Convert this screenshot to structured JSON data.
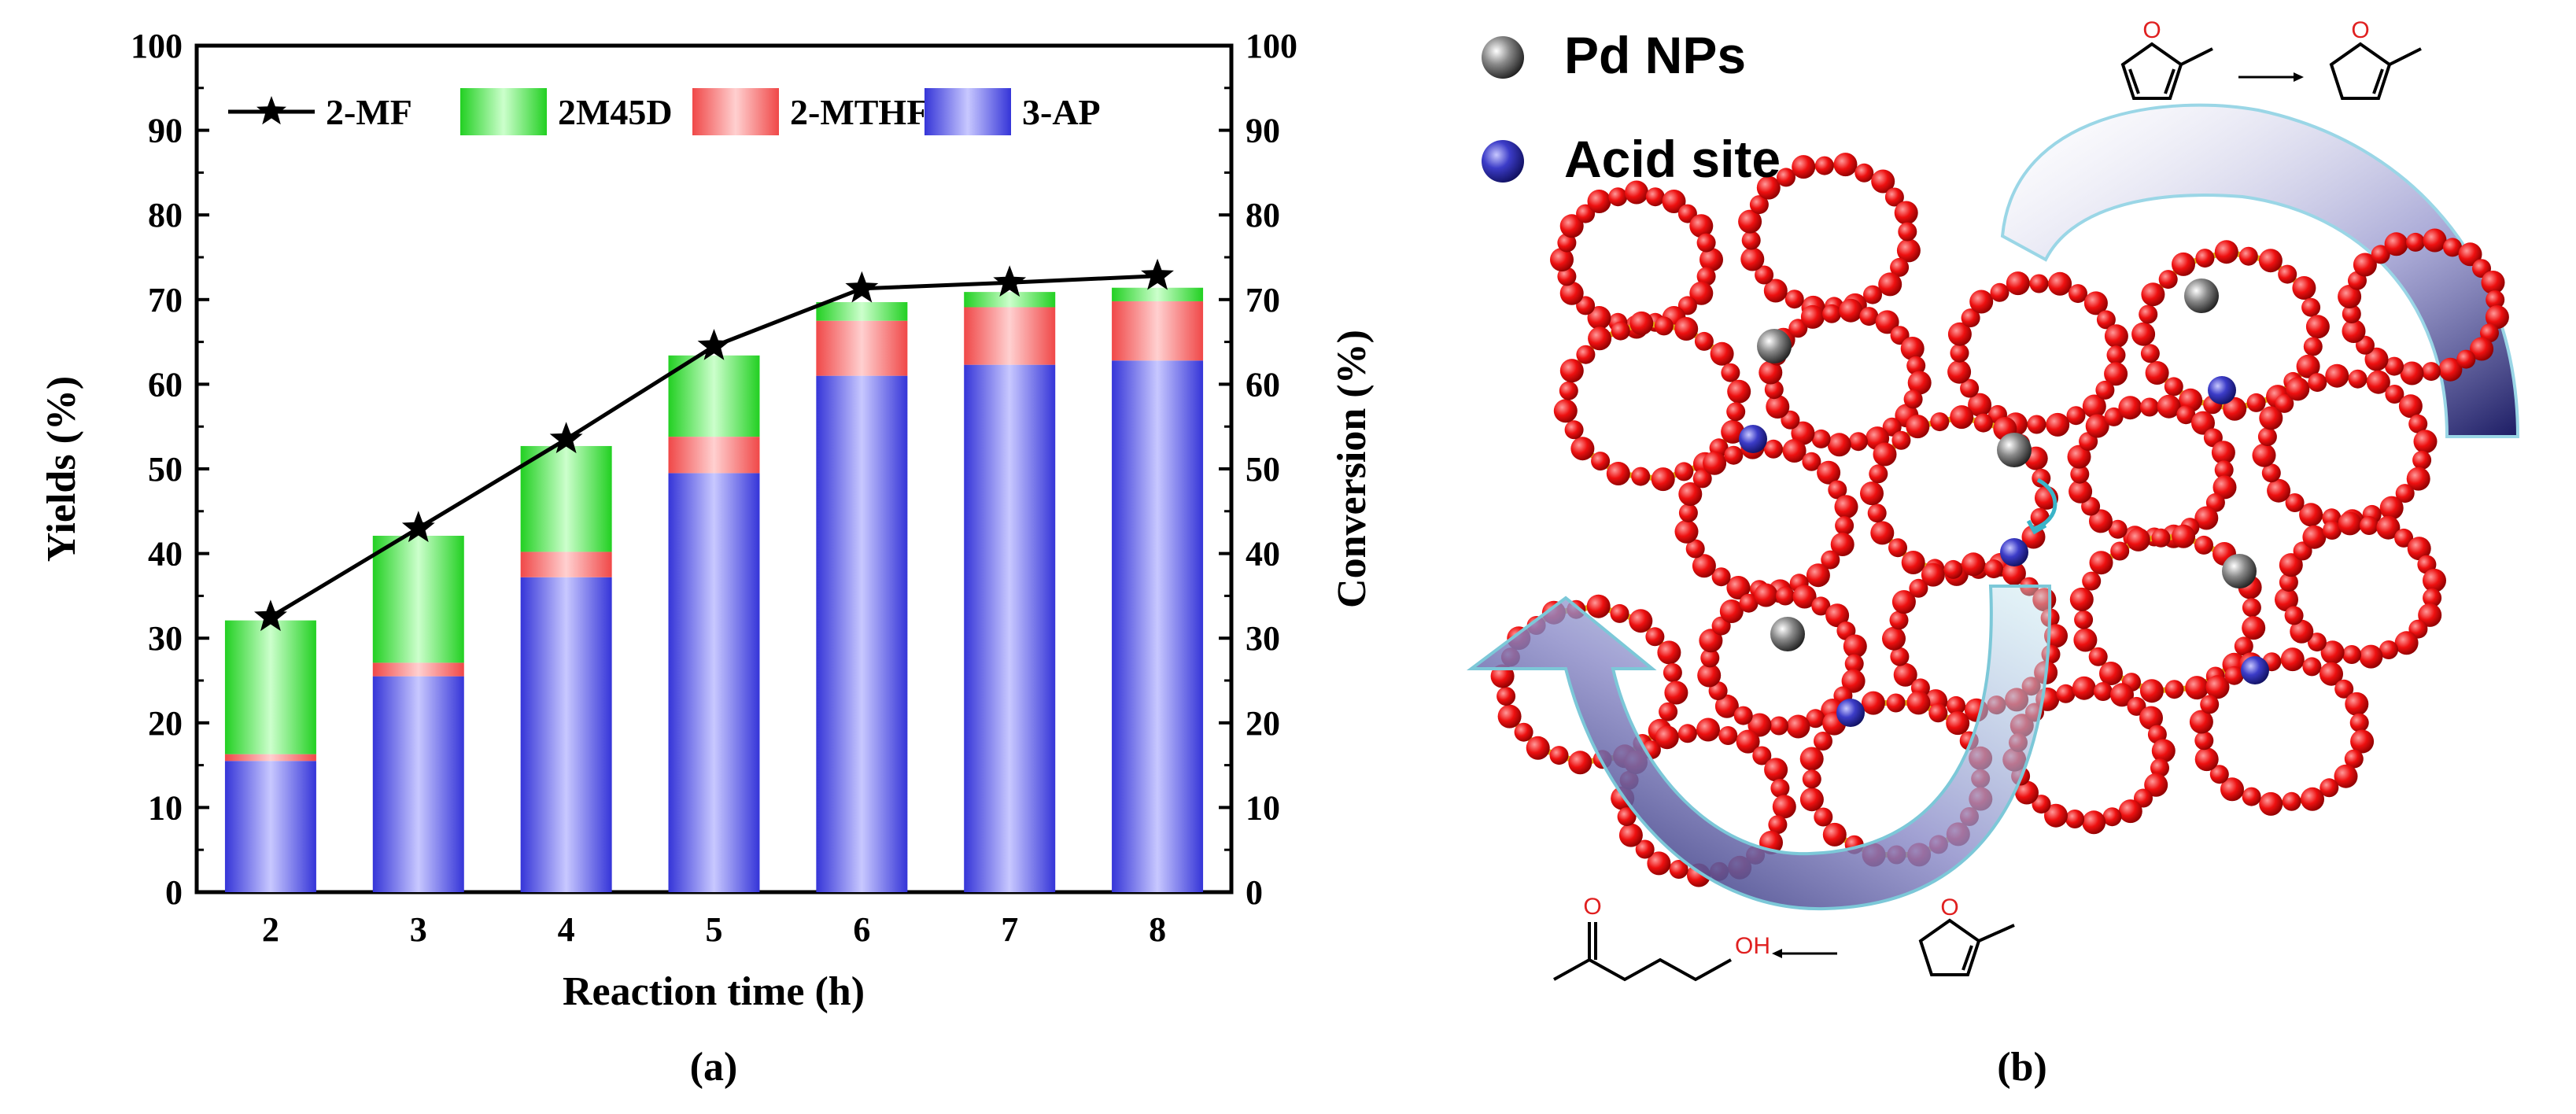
{
  "chart_data": {
    "type": "bar",
    "stacked": true,
    "title": "",
    "xlabel": "Reaction time (h)",
    "ylabel": "Yields (%)",
    "y2label": "Conversion (%)",
    "categories": [
      "2",
      "3",
      "4",
      "5",
      "6",
      "7",
      "8"
    ],
    "ylim": [
      0,
      100
    ],
    "y2lim": [
      0,
      100
    ],
    "yticks": [
      0,
      10,
      20,
      30,
      40,
      50,
      60,
      70,
      80,
      90,
      100
    ],
    "legend_position": "top-left",
    "series": [
      {
        "name": "3-AP",
        "kind": "bar",
        "color": "#4545e0",
        "values": [
          15.5,
          25.5,
          37.2,
          49.5,
          61.0,
          62.3,
          62.8
        ]
      },
      {
        "name": "2-MTHF",
        "kind": "bar",
        "color": "#ee3a3a",
        "values": [
          0.8,
          1.6,
          3.0,
          4.3,
          6.5,
          6.8,
          7.0
        ]
      },
      {
        "name": "2M45D",
        "kind": "bar",
        "color": "#29d429",
        "values": [
          15.8,
          15.0,
          12.5,
          9.6,
          2.2,
          1.8,
          1.6
        ]
      },
      {
        "name": "2-MF",
        "kind": "line",
        "axis": "right",
        "marker": "star",
        "color": "#000000",
        "values": [
          32.5,
          43.0,
          53.5,
          64.5,
          71.3,
          72.0,
          72.8
        ]
      }
    ],
    "legend_order": [
      "2-MF",
      "2M45D",
      "2-MTHF",
      "3-AP"
    ],
    "panel_label": "(a)"
  },
  "diagram": {
    "legend": [
      {
        "label": "Pd NPs",
        "color": "#3a3a3a"
      },
      {
        "label": "Acid site",
        "color": "#2a2a9a"
      }
    ],
    "panel_label": "(b)",
    "molecule_labels": {
      "oxygen": "O",
      "hydroxyl": "OH"
    }
  }
}
